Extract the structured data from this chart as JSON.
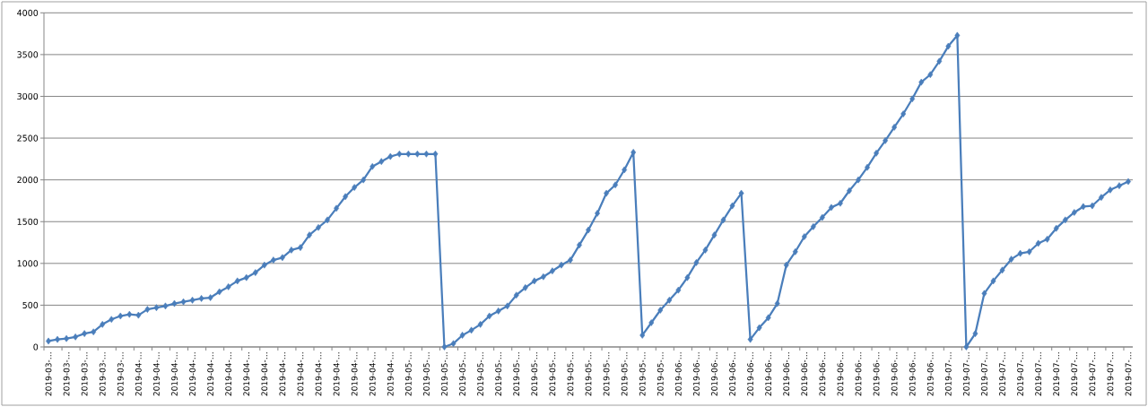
{
  "chart_data": {
    "type": "line",
    "categories": [
      "2019-03-…",
      null,
      "2019-03-…",
      null,
      "2019-03-…",
      null,
      "2019-03-…",
      null,
      "2019-03-…",
      null,
      "2019-04-…",
      null,
      "2019-04-…",
      null,
      "2019-04-…",
      null,
      "2019-04-…",
      null,
      "2019-04-…",
      null,
      "2019-04-…",
      null,
      "2019-04-…",
      null,
      "2019-04-…",
      null,
      "2019-04-…",
      null,
      "2019-04-…",
      null,
      "2019-04-…",
      null,
      "2019-04-…",
      null,
      "2019-04-…",
      null,
      "2019-04-…",
      null,
      "2019-04-…",
      null,
      "2019-05-…",
      null,
      "2019-05-…",
      null,
      "2019-05-…",
      null,
      "2019-05-…",
      null,
      "2019-05-…",
      null,
      "2019-05-…",
      null,
      "2019-05-…",
      null,
      "2019-05-…",
      null,
      "2019-05-…",
      null,
      "2019-05-…",
      null,
      "2019-05-…",
      null,
      "2019-05-…",
      null,
      "2019-05-…",
      null,
      "2019-05-…",
      null,
      "2019-05-…",
      null,
      "2019-06-…",
      null,
      "2019-06-…",
      null,
      "2019-06-…",
      null,
      "2019-06-…",
      null,
      "2019-06-…",
      null,
      "2019-06-…",
      null,
      "2019-06-…",
      null,
      "2019-06-…",
      null,
      "2019-06-…",
      null,
      "2019-06-…",
      null,
      "2019-06-…",
      null,
      "2019-06-…",
      null,
      "2019-06-…",
      null,
      "2019-06-…",
      null,
      "2019-06-…",
      null,
      "2019-07-…",
      null,
      "2019-07-…",
      null,
      "2019-07-…",
      null,
      "2019-07-…",
      null,
      "2019-07-…",
      null,
      "2019-07-…",
      null,
      "2019-07-…",
      null,
      "2019-07-…",
      null,
      "2019-07-…",
      null,
      "2019-07-…",
      null,
      "2019-07-…"
    ],
    "series": [
      {
        "color": "#4a7ebb",
        "values": [
          70,
          90,
          100,
          120,
          160,
          180,
          270,
          330,
          370,
          390,
          380,
          450,
          470,
          490,
          520,
          540,
          560,
          580,
          590,
          660,
          720,
          790,
          830,
          890,
          980,
          1040,
          1070,
          1160,
          1190,
          1340,
          1430,
          1520,
          1660,
          1800,
          1910,
          2000,
          2160,
          2220,
          2280,
          2310,
          2310,
          2310,
          2310,
          2310,
          0,
          40,
          140,
          200,
          270,
          370,
          430,
          490,
          620,
          710,
          790,
          840,
          910,
          980,
          1040,
          1220,
          1400,
          1600,
          1840,
          1940,
          2120,
          2330,
          140,
          290,
          440,
          560,
          680,
          830,
          1010,
          1160,
          1340,
          1520,
          1690,
          1840,
          90,
          230,
          350,
          520,
          980,
          1140,
          1320,
          1440,
          1550,
          1670,
          1720,
          1870,
          2000,
          2150,
          2320,
          2470,
          2630,
          2790,
          2970,
          3170,
          3260,
          3420,
          3600,
          3730,
          0,
          160,
          640,
          790,
          920,
          1050,
          1120,
          1140,
          1240,
          1290,
          1420,
          1520,
          1610,
          1680,
          1690,
          1790,
          1880,
          1930,
          1980
        ]
      }
    ],
    "ylim": [
      0,
      4000
    ],
    "yticks": [
      0,
      500,
      1000,
      1500,
      2000,
      2500,
      3000,
      3500,
      4000
    ],
    "grid": "y",
    "marker": "diamond",
    "line_style": "solid"
  }
}
